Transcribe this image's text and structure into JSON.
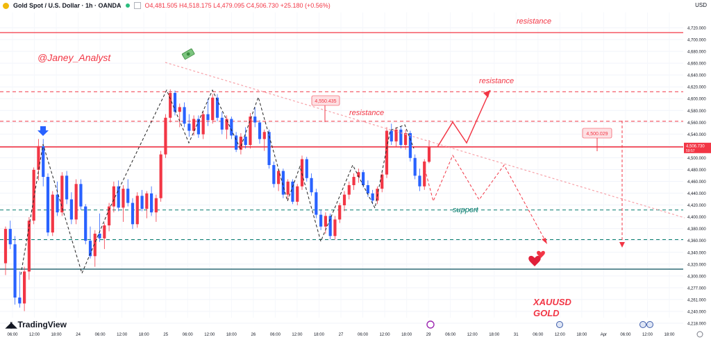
{
  "header": {
    "symbol": "Gold Spot / U.S. Dollar · 1h · OANDA",
    "ohlc": "O4,481.505 H4,518.175 L4,479.095 C4,506.730 +25.180 (+0.56%)"
  },
  "axis": {
    "currency": "USD",
    "price_ticks": [
      "4,720.000",
      "4,700.000",
      "4,680.000",
      "4,660.000",
      "4,640.000",
      "4,620.000",
      "4,600.000",
      "4,580.000",
      "4,560.000",
      "4,540.000",
      "4,520.000",
      "4,500.000",
      "4,480.000",
      "4,460.000",
      "4,440.000",
      "4,420.000",
      "4,400.000",
      "4,380.000",
      "4,360.000",
      "4,340.000",
      "4,320.000",
      "4,300.000",
      "4,277.000",
      "4,261.000",
      "4,240.000",
      "4,218.000"
    ],
    "time_ticks": [
      "06:00",
      "12:00",
      "18:00",
      "24",
      "06:00",
      "12:00",
      "18:00",
      "25",
      "06:00",
      "12:00",
      "18:00",
      "26",
      "06:00",
      "12:00",
      "18:00",
      "27",
      "06:00",
      "12:00",
      "18:00",
      "29",
      "06:00",
      "12:00",
      "18:00",
      "31",
      "06:00",
      "12:00",
      "18:00",
      "Apr",
      "06:00",
      "12:00",
      "18:00"
    ],
    "current_price": "4,506.730",
    "countdown": "59:57"
  },
  "annotations": {
    "author": "@Janey_Analyst",
    "resistance_top": "resistance",
    "resistance_mid": "resistance",
    "resistance_low": "resistance",
    "support": "support",
    "pair": "XAUUSD",
    "asset": "GOLD",
    "price_label_1": "4,550.435",
    "price_label_2": "4,500.029"
  },
  "branding": {
    "name": "TradingView"
  },
  "colors": {
    "up": "#f23645",
    "down": "#2962ff",
    "resistance": "#f23645",
    "support": "#00796b",
    "baseline": "#1b5e6b"
  },
  "chart_data": {
    "type": "candlestick",
    "ylim": [
      4218,
      4734
    ],
    "x_ticks": [
      "06:00",
      "12:00",
      "18:00",
      "24",
      "06:00",
      "12:00",
      "18:00",
      "25",
      "06:00",
      "12:00",
      "18:00",
      "26",
      "06:00",
      "12:00",
      "18:00",
      "27",
      "06:00",
      "12:00",
      "18:00",
      "29",
      "06:00",
      "12:00",
      "18:00",
      "31",
      "06:00",
      "12:00",
      "18:00",
      "Apr",
      "06:00",
      "12:00",
      "18:00"
    ],
    "levels": [
      {
        "name": "resistance-top",
        "value": 4700,
        "style": "solid"
      },
      {
        "name": "resistance-600",
        "value": 4600,
        "style": "dashed"
      },
      {
        "name": "resistance-550",
        "value": 4550,
        "style": "dashed"
      },
      {
        "name": "current",
        "value": 4506.73,
        "style": "solid"
      },
      {
        "name": "support-400",
        "value": 4400,
        "style": "dashed-teal"
      },
      {
        "name": "support-350",
        "value": 4350,
        "style": "dashed-teal"
      },
      {
        "name": "baseline-300",
        "value": 4300,
        "style": "solid-teal"
      }
    ],
    "candles": [
      {
        "o": 4310,
        "h": 4372,
        "l": 4290,
        "c": 4368
      },
      {
        "o": 4368,
        "h": 4382,
        "l": 4334,
        "c": 4342
      },
      {
        "o": 4342,
        "h": 4356,
        "l": 4240,
        "c": 4252
      },
      {
        "o": 4252,
        "h": 4296,
        "l": 4235,
        "c": 4242
      },
      {
        "o": 4242,
        "h": 4304,
        "l": 4229,
        "c": 4296
      },
      {
        "o": 4296,
        "h": 4388,
        "l": 4282,
        "c": 4382
      },
      {
        "o": 4382,
        "h": 4472,
        "l": 4376,
        "c": 4468
      },
      {
        "o": 4468,
        "h": 4520,
        "l": 4450,
        "c": 4508
      },
      {
        "o": 4508,
        "h": 4520,
        "l": 4440,
        "c": 4456
      },
      {
        "o": 4456,
        "h": 4462,
        "l": 4356,
        "c": 4362
      },
      {
        "o": 4362,
        "h": 4432,
        "l": 4356,
        "c": 4426
      },
      {
        "o": 4426,
        "h": 4448,
        "l": 4390,
        "c": 4396
      },
      {
        "o": 4396,
        "h": 4464,
        "l": 4390,
        "c": 4458
      },
      {
        "o": 4458,
        "h": 4466,
        "l": 4410,
        "c": 4418
      },
      {
        "o": 4418,
        "h": 4430,
        "l": 4376,
        "c": 4384
      },
      {
        "o": 4384,
        "h": 4452,
        "l": 4376,
        "c": 4444
      },
      {
        "o": 4444,
        "h": 4452,
        "l": 4400,
        "c": 4406
      },
      {
        "o": 4406,
        "h": 4410,
        "l": 4342,
        "c": 4348
      },
      {
        "o": 4348,
        "h": 4372,
        "l": 4318,
        "c": 4322
      },
      {
        "o": 4322,
        "h": 4366,
        "l": 4304,
        "c": 4360
      },
      {
        "o": 4360,
        "h": 4394,
        "l": 4346,
        "c": 4352
      },
      {
        "o": 4352,
        "h": 4378,
        "l": 4334,
        "c": 4374
      },
      {
        "o": 4374,
        "h": 4412,
        "l": 4364,
        "c": 4406
      },
      {
        "o": 4406,
        "h": 4448,
        "l": 4396,
        "c": 4440
      },
      {
        "o": 4440,
        "h": 4450,
        "l": 4398,
        "c": 4404
      },
      {
        "o": 4404,
        "h": 4442,
        "l": 4380,
        "c": 4436
      },
      {
        "o": 4436,
        "h": 4452,
        "l": 4406,
        "c": 4412
      },
      {
        "o": 4412,
        "h": 4420,
        "l": 4368,
        "c": 4376
      },
      {
        "o": 4376,
        "h": 4430,
        "l": 4370,
        "c": 4424
      },
      {
        "o": 4424,
        "h": 4434,
        "l": 4398,
        "c": 4402
      },
      {
        "o": 4402,
        "h": 4432,
        "l": 4386,
        "c": 4428
      },
      {
        "o": 4428,
        "h": 4440,
        "l": 4390,
        "c": 4396
      },
      {
        "o": 4396,
        "h": 4426,
        "l": 4380,
        "c": 4420
      },
      {
        "o": 4420,
        "h": 4500,
        "l": 4414,
        "c": 4494
      },
      {
        "o": 4494,
        "h": 4562,
        "l": 4488,
        "c": 4556
      },
      {
        "o": 4556,
        "h": 4604,
        "l": 4548,
        "c": 4598
      },
      {
        "o": 4598,
        "h": 4602,
        "l": 4560,
        "c": 4566
      },
      {
        "o": 4566,
        "h": 4580,
        "l": 4540,
        "c": 4574
      },
      {
        "o": 4574,
        "h": 4582,
        "l": 4540,
        "c": 4546
      },
      {
        "o": 4546,
        "h": 4562,
        "l": 4524,
        "c": 4534
      },
      {
        "o": 4534,
        "h": 4560,
        "l": 4526,
        "c": 4554
      },
      {
        "o": 4554,
        "h": 4560,
        "l": 4522,
        "c": 4528
      },
      {
        "o": 4528,
        "h": 4568,
        "l": 4520,
        "c": 4562
      },
      {
        "o": 4562,
        "h": 4588,
        "l": 4542,
        "c": 4552
      },
      {
        "o": 4552,
        "h": 4596,
        "l": 4546,
        "c": 4590
      },
      {
        "o": 4590,
        "h": 4596,
        "l": 4550,
        "c": 4556
      },
      {
        "o": 4556,
        "h": 4566,
        "l": 4528,
        "c": 4536
      },
      {
        "o": 4536,
        "h": 4560,
        "l": 4520,
        "c": 4554
      },
      {
        "o": 4554,
        "h": 4558,
        "l": 4520,
        "c": 4526
      },
      {
        "o": 4526,
        "h": 4532,
        "l": 4498,
        "c": 4502
      },
      {
        "o": 4502,
        "h": 4530,
        "l": 4494,
        "c": 4524
      },
      {
        "o": 4524,
        "h": 4540,
        "l": 4504,
        "c": 4510
      },
      {
        "o": 4510,
        "h": 4564,
        "l": 4504,
        "c": 4558
      },
      {
        "o": 4558,
        "h": 4574,
        "l": 4540,
        "c": 4548
      },
      {
        "o": 4548,
        "h": 4552,
        "l": 4512,
        "c": 4520
      },
      {
        "o": 4520,
        "h": 4536,
        "l": 4500,
        "c": 4532
      },
      {
        "o": 4532,
        "h": 4536,
        "l": 4470,
        "c": 4476
      },
      {
        "o": 4476,
        "h": 4482,
        "l": 4438,
        "c": 4444
      },
      {
        "o": 4444,
        "h": 4470,
        "l": 4432,
        "c": 4466
      },
      {
        "o": 4466,
        "h": 4470,
        "l": 4420,
        "c": 4426
      },
      {
        "o": 4426,
        "h": 4452,
        "l": 4416,
        "c": 4448
      },
      {
        "o": 4448,
        "h": 4452,
        "l": 4410,
        "c": 4414
      },
      {
        "o": 4414,
        "h": 4444,
        "l": 4408,
        "c": 4440
      },
      {
        "o": 4440,
        "h": 4492,
        "l": 4434,
        "c": 4486
      },
      {
        "o": 4486,
        "h": 4490,
        "l": 4448,
        "c": 4454
      },
      {
        "o": 4454,
        "h": 4462,
        "l": 4424,
        "c": 4430
      },
      {
        "o": 4430,
        "h": 4436,
        "l": 4386,
        "c": 4392
      },
      {
        "o": 4392,
        "h": 4400,
        "l": 4366,
        "c": 4372
      },
      {
        "o": 4372,
        "h": 4396,
        "l": 4360,
        "c": 4390
      },
      {
        "o": 4390,
        "h": 4394,
        "l": 4350,
        "c": 4356
      },
      {
        "o": 4356,
        "h": 4390,
        "l": 4350,
        "c": 4384
      },
      {
        "o": 4384,
        "h": 4412,
        "l": 4378,
        "c": 4408
      },
      {
        "o": 4408,
        "h": 4432,
        "l": 4398,
        "c": 4426
      },
      {
        "o": 4426,
        "h": 4448,
        "l": 4418,
        "c": 4442
      },
      {
        "o": 4442,
        "h": 4462,
        "l": 4434,
        "c": 4456
      },
      {
        "o": 4456,
        "h": 4470,
        "l": 4446,
        "c": 4464
      },
      {
        "o": 4464,
        "h": 4468,
        "l": 4438,
        "c": 4442
      },
      {
        "o": 4442,
        "h": 4450,
        "l": 4422,
        "c": 4428
      },
      {
        "o": 4428,
        "h": 4434,
        "l": 4410,
        "c": 4416
      },
      {
        "o": 4416,
        "h": 4440,
        "l": 4410,
        "c": 4436
      },
      {
        "o": 4436,
        "h": 4466,
        "l": 4430,
        "c": 4460
      },
      {
        "o": 4460,
        "h": 4540,
        "l": 4454,
        "c": 4534
      },
      {
        "o": 4534,
        "h": 4546,
        "l": 4510,
        "c": 4516
      },
      {
        "o": 4516,
        "h": 4540,
        "l": 4506,
        "c": 4536
      },
      {
        "o": 4536,
        "h": 4542,
        "l": 4504,
        "c": 4510
      },
      {
        "o": 4510,
        "h": 4536,
        "l": 4502,
        "c": 4530
      },
      {
        "o": 4530,
        "h": 4534,
        "l": 4482,
        "c": 4488
      },
      {
        "o": 4488,
        "h": 4494,
        "l": 4452,
        "c": 4458
      },
      {
        "o": 4458,
        "h": 4470,
        "l": 4432,
        "c": 4440
      },
      {
        "o": 4440,
        "h": 4486,
        "l": 4434,
        "c": 4482
      },
      {
        "o": 4481.505,
        "h": 4518.175,
        "l": 4479.095,
        "c": 4506.73
      }
    ]
  }
}
